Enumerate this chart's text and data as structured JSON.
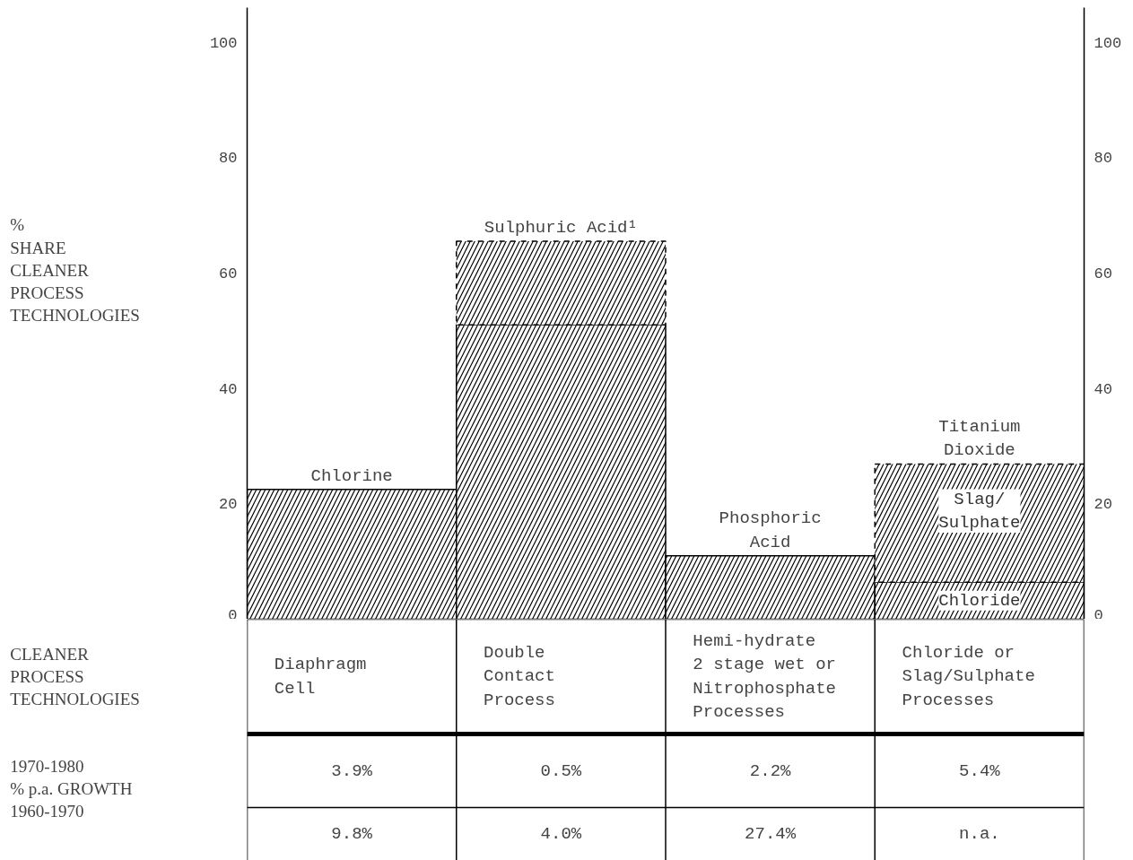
{
  "chart_data": {
    "type": "bar",
    "stacked": true,
    "categories": [
      "Chlorine",
      "Sulphuric Acid¹",
      "Phosphoric\nAcid",
      "Titanium\nDioxide"
    ],
    "series": [
      {
        "color": "#000000",
        "values": [
          22.5,
          51,
          11,
          6.4
        ],
        "line_style": "solid"
      },
      {
        "color": "#000000",
        "values": [
          null,
          14.5,
          null,
          20.5
        ],
        "line_style": "dashed"
      }
    ],
    "ylabel": "%\nSHARE\nCLEANER\nPROCESS\nTECHNOLOGIES",
    "ylim": [
      0,
      106
    ],
    "yticks": [
      0,
      20,
      40,
      60,
      80,
      100
    ],
    "y2lim": [
      0,
      106
    ],
    "y2ticks": [
      0,
      20,
      40,
      60,
      80,
      100
    ],
    "grid": false,
    "annotations": [
      "CLEANER\nPROCESS\nTECHNOLOGIES",
      "Diaphragm\nCell",
      "Double\nContact\nProcess",
      "Hemi-hydrate\n2 stage wet or\nNitrophosphate\nProcesses",
      "Chloride or\nSlag/Sulphate\nProcesses",
      "1970-1980\n% p.a. GROWTH\n1960-1970",
      "3.9%",
      "0.5%",
      "2.2%",
      "5.4%",
      "9.8%",
      "4.0%",
      "27.4%",
      "n.a.",
      "Slag/\nSulphate",
      "Chloride"
    ]
  }
}
